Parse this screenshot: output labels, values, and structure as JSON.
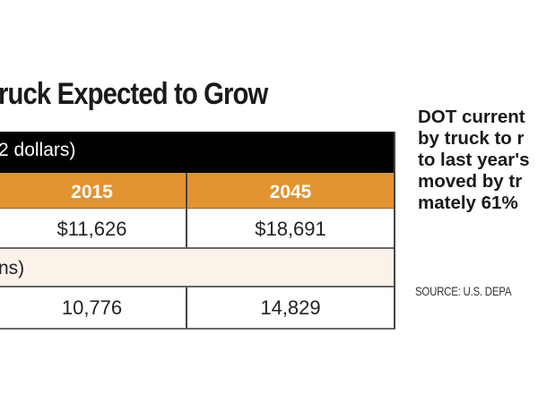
{
  "title": "ruck Expected to Grow",
  "table": {
    "section1_header": "2 dollars)",
    "years": [
      "2015",
      "2045"
    ],
    "value_row": [
      "$11,626",
      "$18,691"
    ],
    "section2_header": "ns)",
    "tonnage_row": [
      "10,776",
      "14,829"
    ]
  },
  "side_text": {
    "lines": [
      "DOT current",
      "by truck to r",
      "to last year's",
      "moved by tr",
      "mately 61%"
    ]
  },
  "source": "SOURCE: U.S. DEPA",
  "colors": {
    "header_black": "#000000",
    "year_orange": "#e29330",
    "subheader_beige": "#fbf3ea"
  }
}
